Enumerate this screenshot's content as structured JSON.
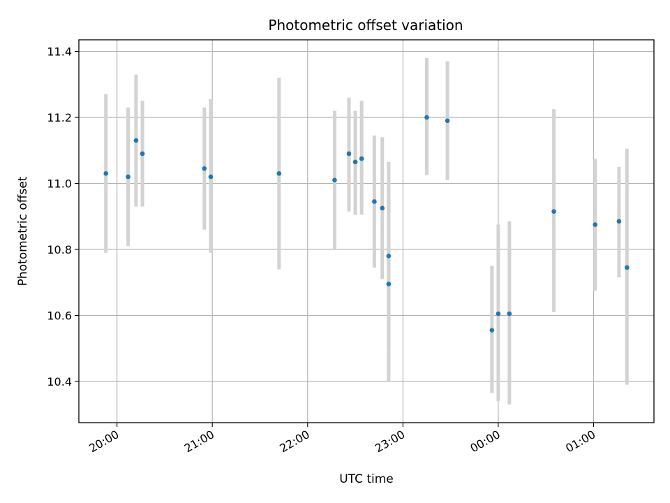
{
  "chart_data": {
    "type": "scatter",
    "title": "Photometric offset variation",
    "xlabel": "UTC time",
    "ylabel": "Photometric offset",
    "x_ticks": [
      "20:00",
      "21:00",
      "22:00",
      "23:00",
      "00:00",
      "01:00"
    ],
    "y_ticks": [
      "10.4",
      "10.6",
      "10.8",
      "11.0",
      "11.2",
      "11.4"
    ],
    "xlim": [
      "19:36",
      "01:38"
    ],
    "ylim": [
      10.275,
      11.435
    ],
    "grid": true,
    "colors": {
      "point": "#1f77b4",
      "errorbar": "#d3d3d3",
      "grid": "#b0b0b0"
    },
    "points": [
      {
        "x": "19:53",
        "y": 11.03,
        "ylow": 10.79,
        "yhigh": 11.27
      },
      {
        "x": "20:07",
        "y": 11.02,
        "ylow": 10.81,
        "yhigh": 11.23
      },
      {
        "x": "20:12",
        "y": 11.13,
        "ylow": 10.93,
        "yhigh": 11.33
      },
      {
        "x": "20:16",
        "y": 11.09,
        "ylow": 10.93,
        "yhigh": 11.25
      },
      {
        "x": "20:55",
        "y": 11.045,
        "ylow": 10.86,
        "yhigh": 11.23
      },
      {
        "x": "20:59",
        "y": 11.02,
        "ylow": 10.79,
        "yhigh": 11.255
      },
      {
        "x": "21:42",
        "y": 11.03,
        "ylow": 10.74,
        "yhigh": 11.32
      },
      {
        "x": "22:17",
        "y": 11.01,
        "ylow": 10.8,
        "yhigh": 11.22
      },
      {
        "x": "22:26",
        "y": 11.09,
        "ylow": 10.915,
        "yhigh": 11.26
      },
      {
        "x": "22:30",
        "y": 11.065,
        "ylow": 10.905,
        "yhigh": 11.22
      },
      {
        "x": "22:34",
        "y": 11.075,
        "ylow": 10.905,
        "yhigh": 11.25
      },
      {
        "x": "22:42",
        "y": 10.945,
        "ylow": 10.745,
        "yhigh": 11.145
      },
      {
        "x": "22:47",
        "y": 10.925,
        "ylow": 10.71,
        "yhigh": 11.14
      },
      {
        "x": "22:51",
        "y": 10.78,
        "ylow": 10.5,
        "yhigh": 11.065
      },
      {
        "x": "22:51",
        "y": 10.695,
        "ylow": 10.4,
        "yhigh": 10.99
      },
      {
        "x": "23:15",
        "y": 11.2,
        "ylow": 11.025,
        "yhigh": 11.38
      },
      {
        "x": "23:28",
        "y": 11.19,
        "ylow": 11.01,
        "yhigh": 11.37
      },
      {
        "x": "23:56",
        "y": 10.555,
        "ylow": 10.365,
        "yhigh": 10.75
      },
      {
        "x": "00:00",
        "y": 10.605,
        "ylow": 10.34,
        "yhigh": 10.875
      },
      {
        "x": "00:07",
        "y": 10.605,
        "ylow": 10.33,
        "yhigh": 10.885
      },
      {
        "x": "00:35",
        "y": 10.915,
        "ylow": 10.61,
        "yhigh": 11.225
      },
      {
        "x": "01:01",
        "y": 10.875,
        "ylow": 10.675,
        "yhigh": 11.075
      },
      {
        "x": "01:16",
        "y": 10.885,
        "ylow": 10.715,
        "yhigh": 11.05
      },
      {
        "x": "01:21",
        "y": 10.745,
        "ylow": 10.39,
        "yhigh": 11.105
      }
    ]
  }
}
